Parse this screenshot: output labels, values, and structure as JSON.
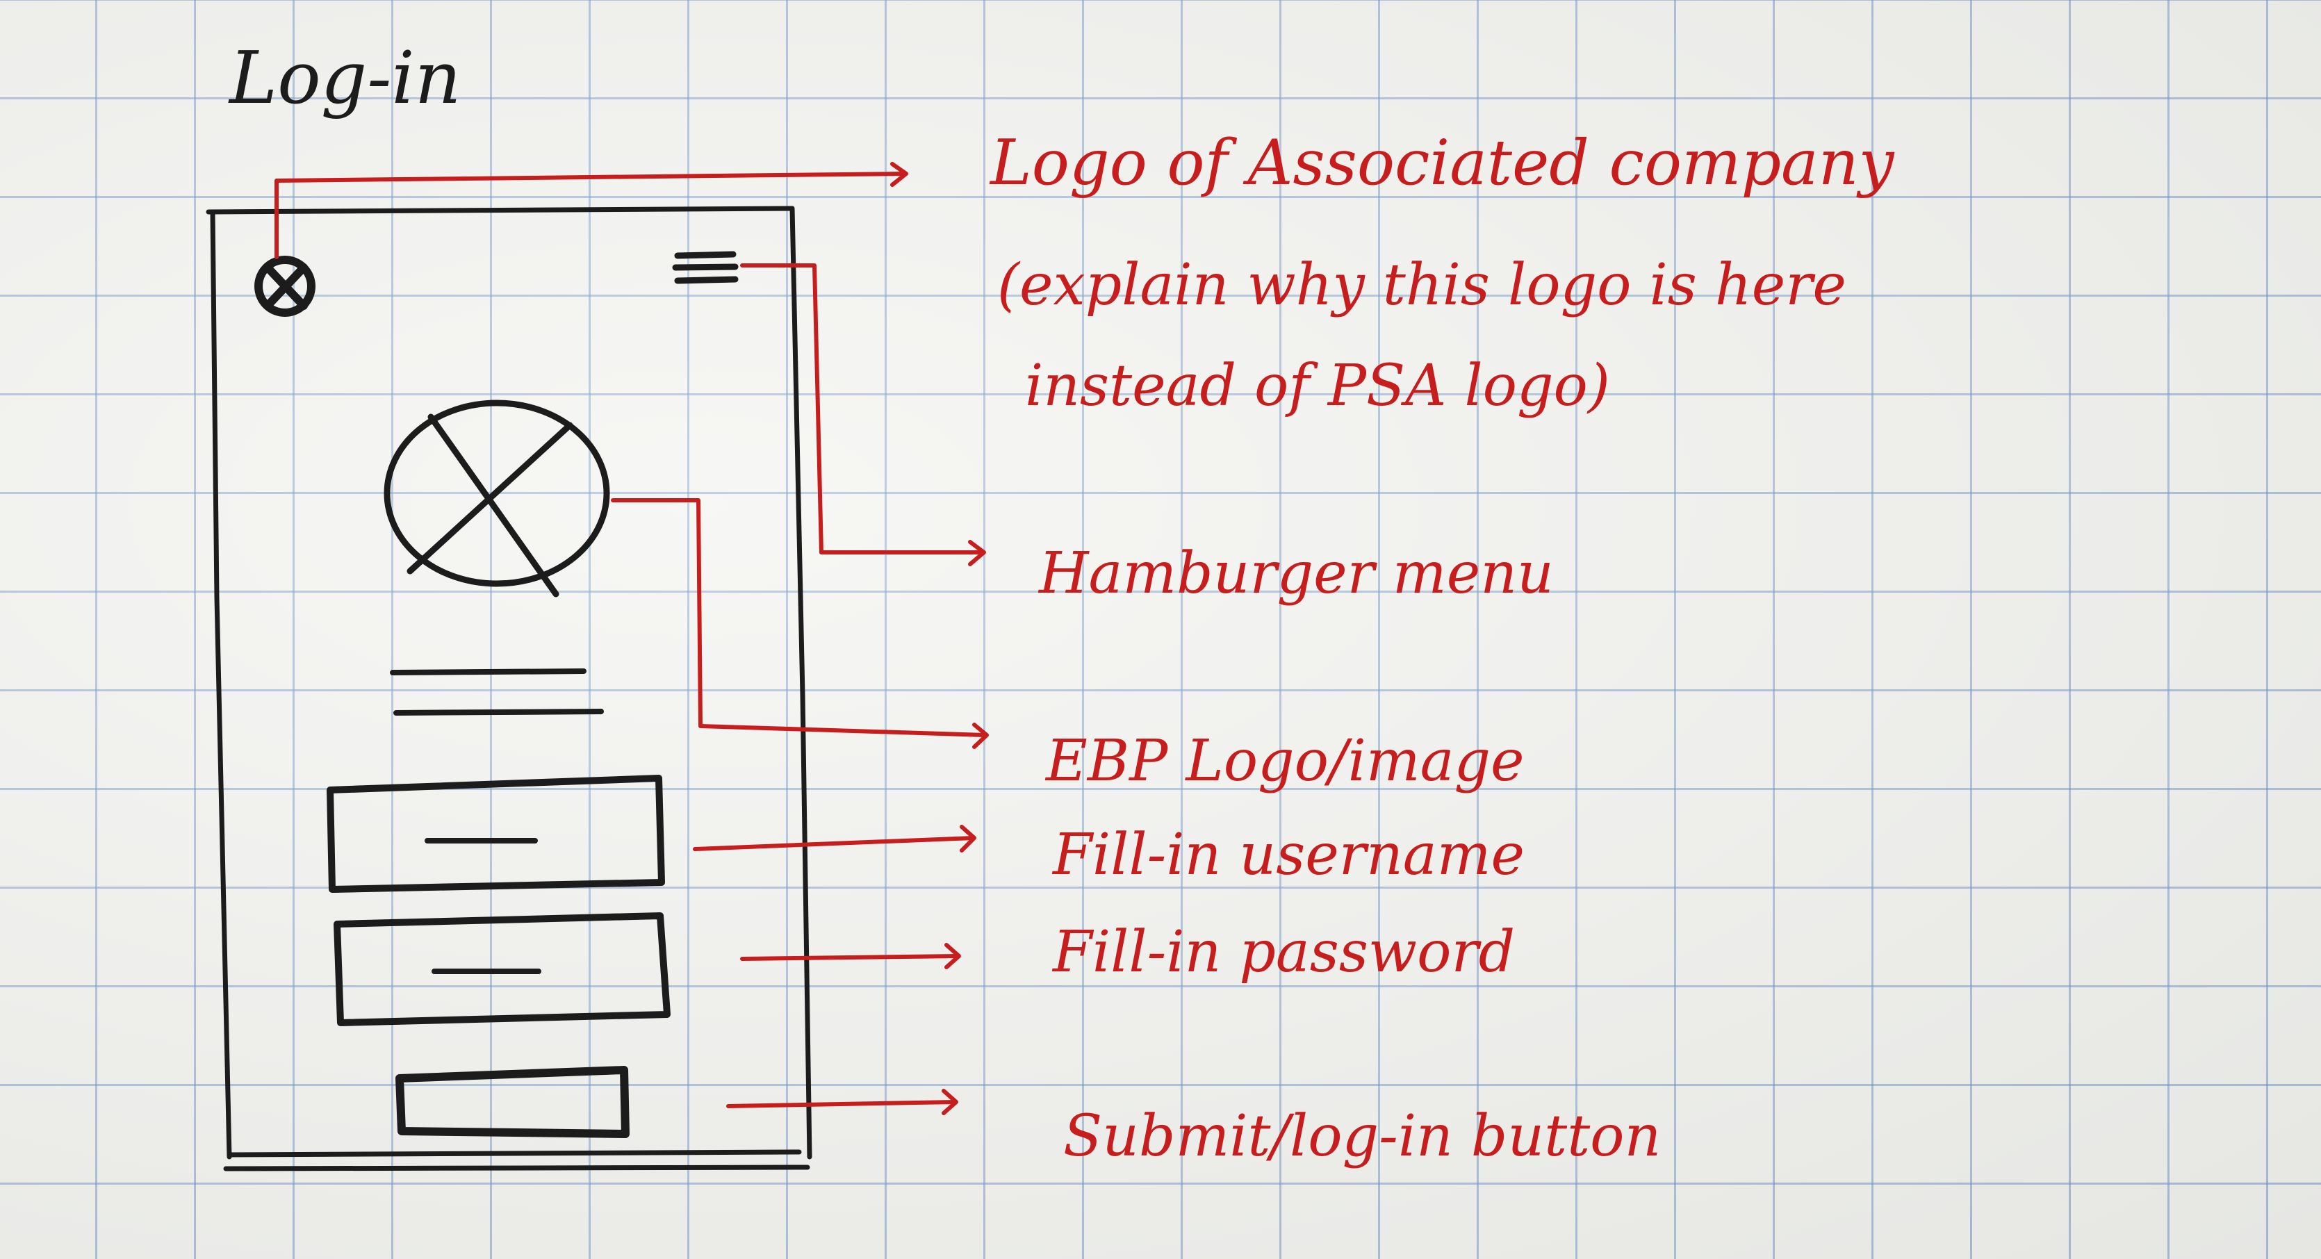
{
  "title": "Log-in",
  "annotations": {
    "associated_logo": {
      "line1": "Logo of Associated company",
      "line2": "(explain why this logo is here",
      "line3": "instead of PSA logo)"
    },
    "hamburger_menu": "Hamburger menu",
    "ebp_logo": "EBP Logo/image",
    "username": "Fill-in username",
    "password": "Fill-in password",
    "submit": "Submit/log-in button"
  },
  "colors": {
    "annotation_ink": "#c71d1d",
    "sketch_ink": "#1c1c1c",
    "grid": "#6e96c8"
  }
}
